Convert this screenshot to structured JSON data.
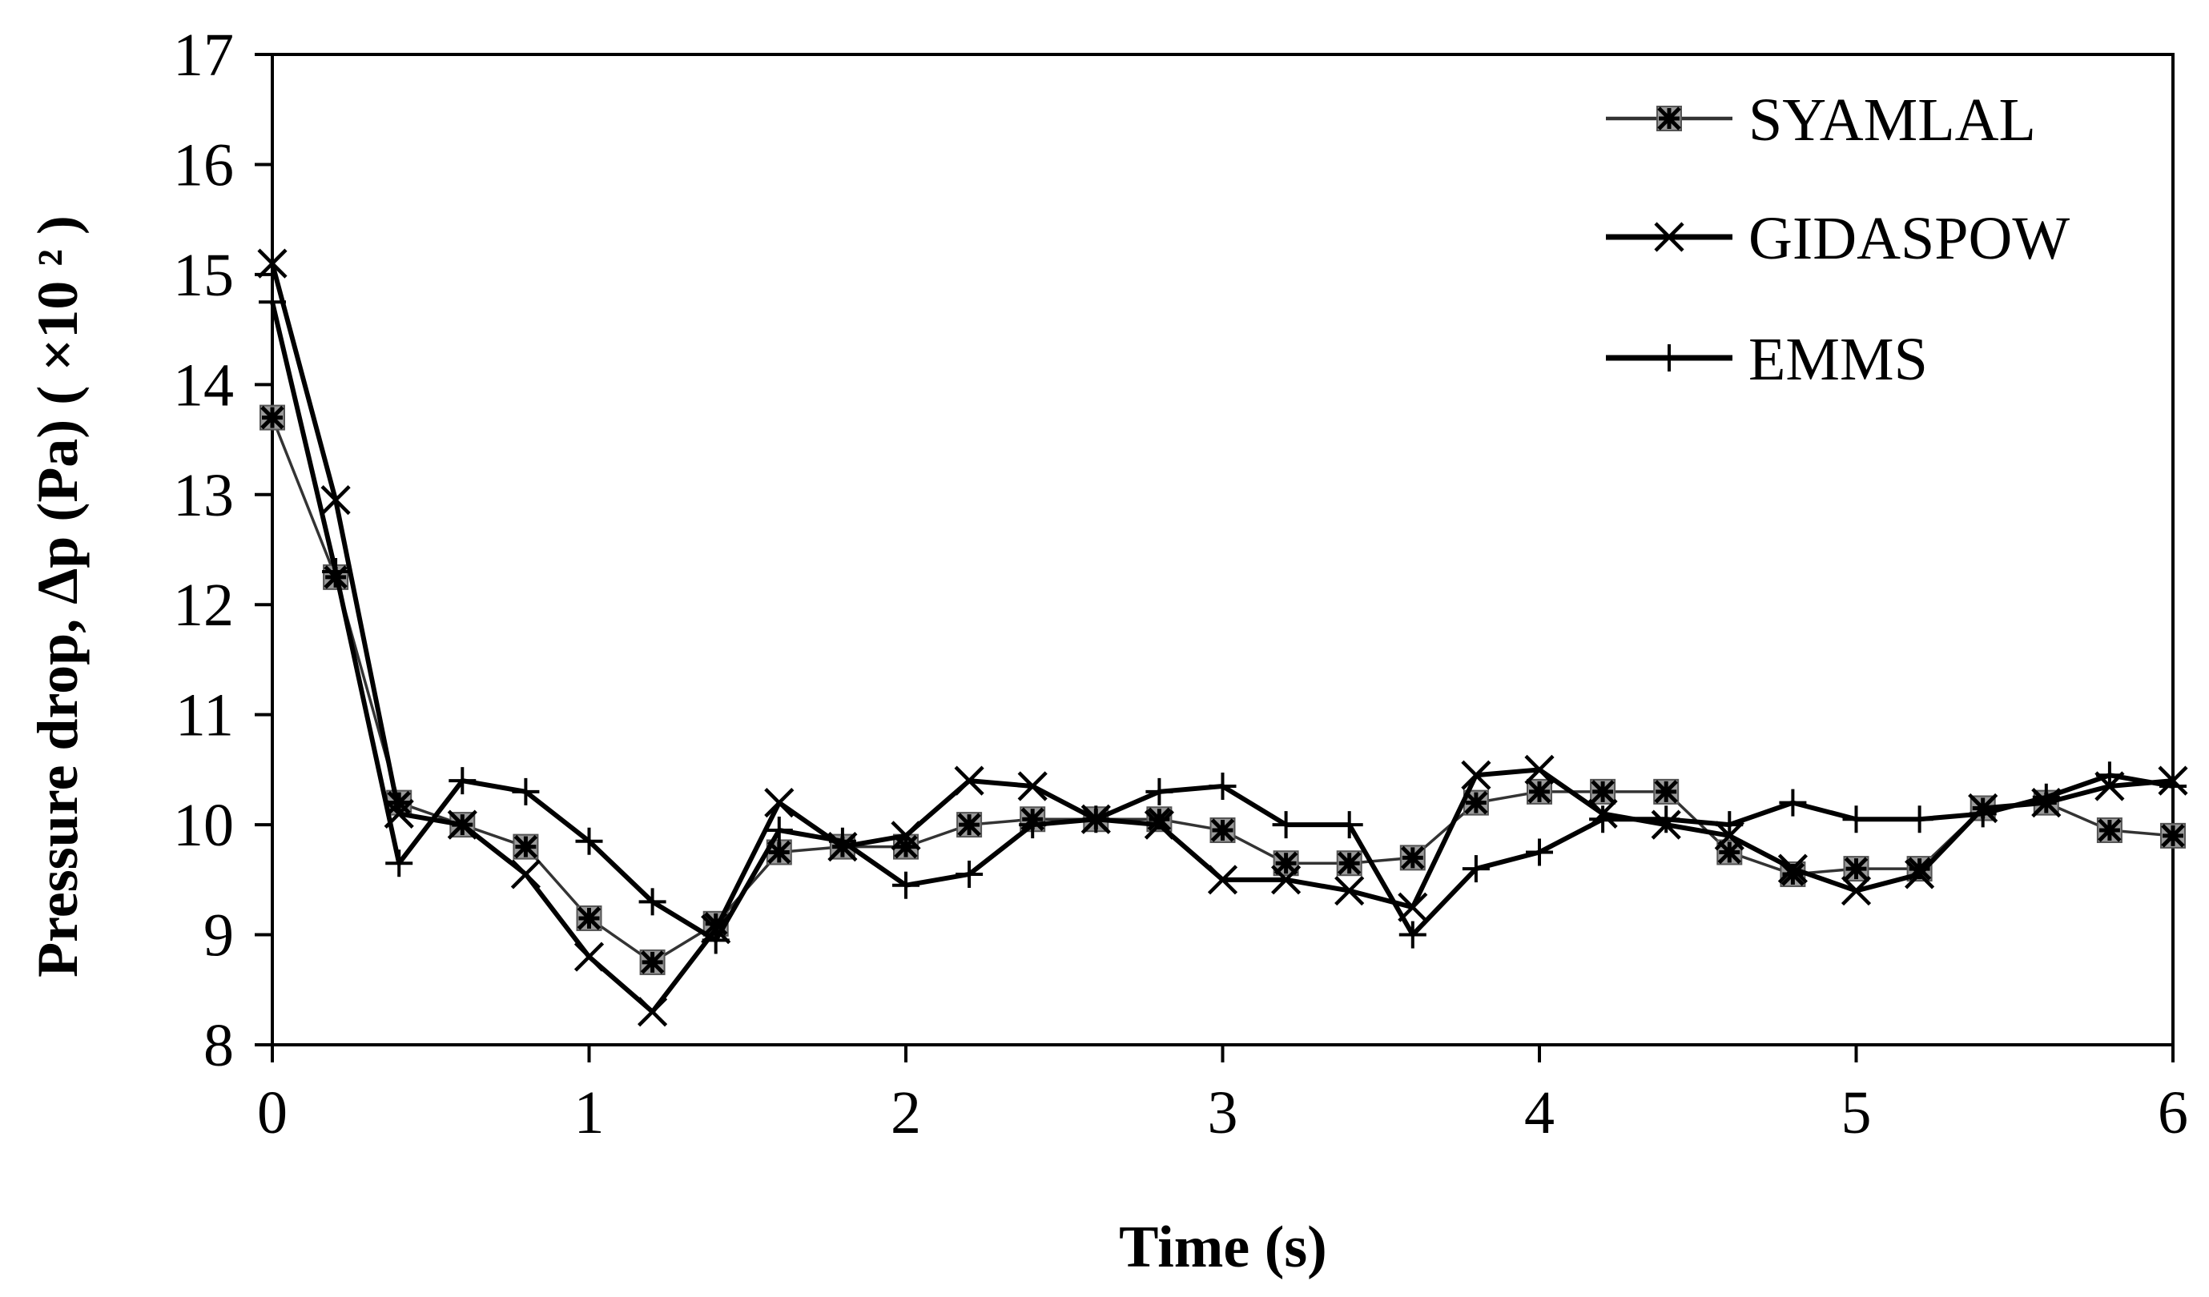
{
  "chart_data": {
    "type": "line",
    "title": "",
    "xlabel": "Time (s)",
    "ylabel": "Pressure drop, Δp (Pa) ( ×10 ² )",
    "xlim": [
      0,
      6
    ],
    "ylim": [
      8,
      17
    ],
    "xticks": [
      "0",
      "1",
      "2",
      "3",
      "4",
      "5",
      "6"
    ],
    "yticks": [
      "8",
      "9",
      "10",
      "11",
      "12",
      "13",
      "14",
      "15",
      "16",
      "17"
    ],
    "grid": false,
    "legend_position": "top-right",
    "x": [
      0,
      0.2,
      0.4,
      0.6,
      0.8,
      1.0,
      1.2,
      1.4,
      1.6,
      1.8,
      2.0,
      2.2,
      2.4,
      2.6,
      2.8,
      3.0,
      3.2,
      3.4,
      3.6,
      3.8,
      4.0,
      4.2,
      4.4,
      4.6,
      4.8,
      5.0,
      5.2,
      5.4,
      5.6,
      5.8,
      6.0
    ],
    "series": [
      {
        "name": "SYAMLAL",
        "marker": "asterisk-square",
        "color": "#000000",
        "values": [
          13.7,
          12.25,
          10.2,
          10.0,
          9.8,
          9.15,
          8.75,
          9.1,
          9.75,
          9.8,
          9.8,
          10.0,
          10.05,
          10.05,
          10.05,
          9.95,
          9.65,
          9.65,
          9.7,
          10.2,
          10.3,
          10.3,
          10.3,
          9.75,
          9.55,
          9.6,
          9.6,
          10.15,
          10.2,
          9.95,
          9.9
        ]
      },
      {
        "name": "GIDASPOW",
        "marker": "x",
        "color": "#000000",
        "values": [
          15.1,
          12.95,
          10.1,
          10.0,
          9.55,
          8.8,
          8.3,
          9.05,
          10.2,
          9.8,
          9.9,
          10.4,
          10.35,
          10.05,
          10.0,
          9.5,
          9.5,
          9.4,
          9.25,
          10.45,
          10.5,
          10.1,
          10.0,
          9.9,
          9.6,
          9.4,
          9.55,
          10.15,
          10.2,
          10.35,
          10.4
        ]
      },
      {
        "name": "EMMS",
        "marker": "plus",
        "color": "#000000",
        "values": [
          14.75,
          12.3,
          9.65,
          10.4,
          10.3,
          9.85,
          9.3,
          8.95,
          9.95,
          9.85,
          9.45,
          9.55,
          10.0,
          10.05,
          10.3,
          10.35,
          10.0,
          10.0,
          9.0,
          9.6,
          9.75,
          10.05,
          10.05,
          10.0,
          10.2,
          10.05,
          10.05,
          10.1,
          10.25,
          10.45,
          10.35
        ]
      }
    ]
  }
}
